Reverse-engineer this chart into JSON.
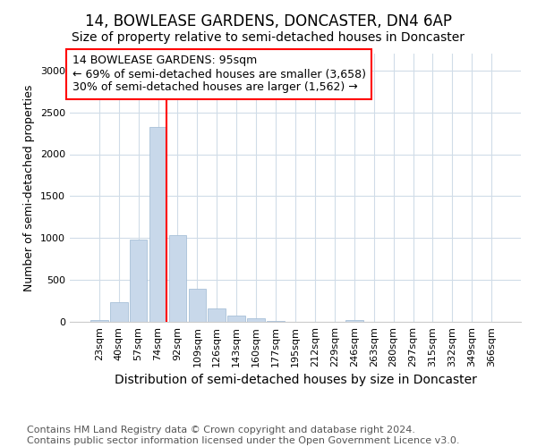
{
  "title": "14, BOWLEASE GARDENS, DONCASTER, DN4 6AP",
  "subtitle": "Size of property relative to semi-detached houses in Doncaster",
  "xlabel": "Distribution of semi-detached houses by size in Doncaster",
  "ylabel": "Number of semi-detached properties",
  "categories": [
    "23sqm",
    "40sqm",
    "57sqm",
    "74sqm",
    "92sqm",
    "109sqm",
    "126sqm",
    "143sqm",
    "160sqm",
    "177sqm",
    "195sqm",
    "212sqm",
    "229sqm",
    "246sqm",
    "263sqm",
    "280sqm",
    "297sqm",
    "315sqm",
    "332sqm",
    "349sqm",
    "366sqm"
  ],
  "values": [
    20,
    230,
    980,
    2330,
    1040,
    400,
    160,
    80,
    40,
    15,
    5,
    3,
    2,
    20,
    2,
    1,
    1,
    1,
    1,
    1,
    1
  ],
  "bar_color": "#c8d8ea",
  "bar_edge_color": "#a8c0d8",
  "annotation_line1": "14 BOWLEASE GARDENS: 95sqm",
  "annotation_line2": "← 69% of semi-detached houses are smaller (3,658)",
  "annotation_line3": "30% of semi-detached houses are larger (1,562) →",
  "annotation_box_color": "white",
  "annotation_box_edgecolor": "red",
  "vline_color": "red",
  "vline_x_index": 3,
  "ylim": [
    0,
    3200
  ],
  "yticks": [
    0,
    500,
    1000,
    1500,
    2000,
    2500,
    3000
  ],
  "footer_line1": "Contains HM Land Registry data © Crown copyright and database right 2024.",
  "footer_line2": "Contains public sector information licensed under the Open Government Licence v3.0.",
  "bg_color": "#ffffff",
  "plot_bg_color": "#ffffff",
  "grid_color": "#d0dce8",
  "title_fontsize": 12,
  "subtitle_fontsize": 10,
  "xlabel_fontsize": 10,
  "ylabel_fontsize": 9,
  "tick_fontsize": 8,
  "annotation_fontsize": 9,
  "footer_fontsize": 8
}
